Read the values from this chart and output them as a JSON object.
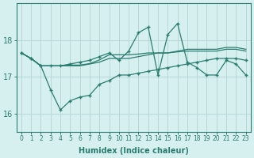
{
  "xlabel": "Humidex (Indice chaleur)",
  "x": [
    0,
    1,
    2,
    3,
    4,
    5,
    6,
    7,
    8,
    9,
    10,
    11,
    12,
    13,
    14,
    15,
    16,
    17,
    18,
    19,
    20,
    21,
    22,
    23
  ],
  "line_top": [
    17.65,
    17.5,
    17.3,
    17.3,
    17.3,
    17.35,
    17.4,
    17.45,
    17.55,
    17.65,
    17.45,
    17.7,
    18.2,
    18.35,
    17.05,
    18.15,
    18.45,
    17.4,
    17.25,
    17.05,
    17.05,
    17.45,
    17.35,
    17.05
  ],
  "line_mid_high": [
    17.65,
    17.5,
    17.3,
    17.3,
    17.3,
    17.3,
    17.3,
    17.35,
    17.4,
    17.5,
    17.5,
    17.5,
    17.55,
    17.6,
    17.65,
    17.65,
    17.7,
    17.75,
    17.75,
    17.75,
    17.75,
    17.8,
    17.8,
    17.75
  ],
  "line_mid_low": [
    17.65,
    17.5,
    17.3,
    17.3,
    17.3,
    17.32,
    17.32,
    17.36,
    17.46,
    17.6,
    17.6,
    17.6,
    17.62,
    17.65,
    17.65,
    17.65,
    17.68,
    17.7,
    17.7,
    17.7,
    17.7,
    17.75,
    17.75,
    17.7
  ],
  "line_low": [
    17.65,
    17.5,
    17.3,
    16.65,
    16.1,
    16.35,
    16.45,
    16.5,
    16.8,
    16.9,
    17.05,
    17.05,
    17.1,
    17.15,
    17.2,
    17.25,
    17.3,
    17.35,
    17.4,
    17.45,
    17.5,
    17.5,
    17.5,
    17.45
  ],
  "line_color": "#2a7d6e",
  "bg_color": "#d6efef",
  "grid_color": "#b8d8d8",
  "axis_color": "#2a7d6e",
  "ylim": [
    15.5,
    19.0
  ],
  "yticks": [
    16,
    17,
    18
  ],
  "xticks": [
    0,
    1,
    2,
    3,
    4,
    5,
    6,
    7,
    8,
    9,
    10,
    11,
    12,
    13,
    14,
    15,
    16,
    17,
    18,
    19,
    20,
    21,
    22,
    23
  ]
}
